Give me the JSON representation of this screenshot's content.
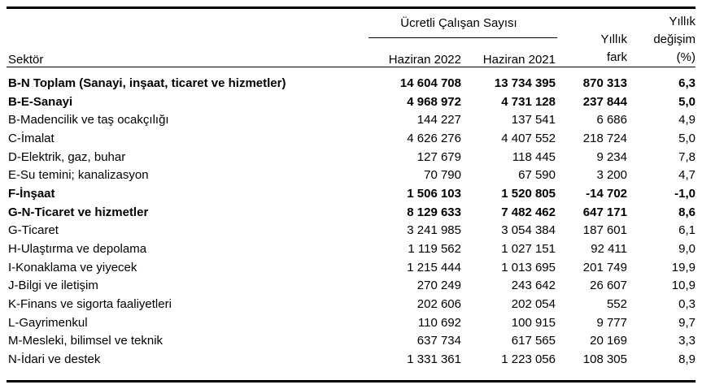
{
  "header": {
    "sector_label": "Sektör",
    "group_title": "Ücretli Çalışan Sayısı",
    "col_jun2022": "Haziran 2022",
    "col_jun2021": "Haziran 2021",
    "fark_line1": "Yıllık",
    "fark_line2": "fark",
    "degisim_line1": "Yıllık",
    "degisim_line2": "değişim",
    "degisim_line3": "(%)"
  },
  "chart_data": {
    "type": "table",
    "title": "Ücretli Çalışan Sayısı",
    "columns": [
      "Sektör",
      "Haziran 2022",
      "Haziran 2021",
      "Yıllık fark",
      "Yıllık değişim (%)"
    ],
    "rows": [
      {
        "sector": "B-N Toplam (Sanayi, inşaat, ticaret ve hizmetler)",
        "jun2022": "14 604 708",
        "jun2021": "13 734 395",
        "annual_diff": "870 313",
        "annual_change_pct": "6,3",
        "emphasis": true
      },
      {
        "sector": "B-E-Sanayi",
        "jun2022": "4 968 972",
        "jun2021": "4 731 128",
        "annual_diff": "237 844",
        "annual_change_pct": "5,0",
        "emphasis": true
      },
      {
        "sector": "B-Madencilik ve taş ocakçılığı",
        "jun2022": "144 227",
        "jun2021": "137 541",
        "annual_diff": "6 686",
        "annual_change_pct": "4,9",
        "emphasis": false
      },
      {
        "sector": "C-İmalat",
        "jun2022": "4 626 276",
        "jun2021": "4 407 552",
        "annual_diff": "218 724",
        "annual_change_pct": "5,0",
        "emphasis": false
      },
      {
        "sector": "D-Elektrik, gaz, buhar",
        "jun2022": "127 679",
        "jun2021": "118 445",
        "annual_diff": "9 234",
        "annual_change_pct": "7,8",
        "emphasis": false
      },
      {
        "sector": "E-Su temini; kanalizasyon",
        "jun2022": "70 790",
        "jun2021": "67 590",
        "annual_diff": "3 200",
        "annual_change_pct": "4,7",
        "emphasis": false
      },
      {
        "sector": "F-İnşaat",
        "jun2022": "1 506 103",
        "jun2021": "1 520 805",
        "annual_diff": "-14 702",
        "annual_change_pct": "-1,0",
        "emphasis": true
      },
      {
        "sector": "G-N-Ticaret ve hizmetler",
        "jun2022": "8 129 633",
        "jun2021": "7 482 462",
        "annual_diff": "647 171",
        "annual_change_pct": "8,6",
        "emphasis": true
      },
      {
        "sector": "G-Ticaret",
        "jun2022": "3 241 985",
        "jun2021": "3 054 384",
        "annual_diff": "187 601",
        "annual_change_pct": "6,1",
        "emphasis": false
      },
      {
        "sector": "H-Ulaştırma ve depolama",
        "jun2022": "1 119 562",
        "jun2021": "1 027 151",
        "annual_diff": "92 411",
        "annual_change_pct": "9,0",
        "emphasis": false
      },
      {
        "sector": "I-Konaklama ve yiyecek",
        "jun2022": "1 215 444",
        "jun2021": "1 013 695",
        "annual_diff": "201 749",
        "annual_change_pct": "19,9",
        "emphasis": false
      },
      {
        "sector": "J-Bilgi ve iletişim",
        "jun2022": "270 249",
        "jun2021": "243 642",
        "annual_diff": "26 607",
        "annual_change_pct": "10,9",
        "emphasis": false
      },
      {
        "sector": "K-Finans ve sigorta faaliyetleri",
        "jun2022": "202 606",
        "jun2021": "202 054",
        "annual_diff": "552",
        "annual_change_pct": "0,3",
        "emphasis": false
      },
      {
        "sector": "L-Gayrimenkul",
        "jun2022": "110 692",
        "jun2021": "100 915",
        "annual_diff": "9 777",
        "annual_change_pct": "9,7",
        "emphasis": false
      },
      {
        "sector": "M-Mesleki, bilimsel ve teknik",
        "jun2022": "637 734",
        "jun2021": "617 565",
        "annual_diff": "20 169",
        "annual_change_pct": "3,3",
        "emphasis": false
      },
      {
        "sector": "N-İdari ve destek",
        "jun2022": "1 331 361",
        "jun2021": "1 223 056",
        "annual_diff": "108 305",
        "annual_change_pct": "8,9",
        "emphasis": false
      }
    ]
  }
}
